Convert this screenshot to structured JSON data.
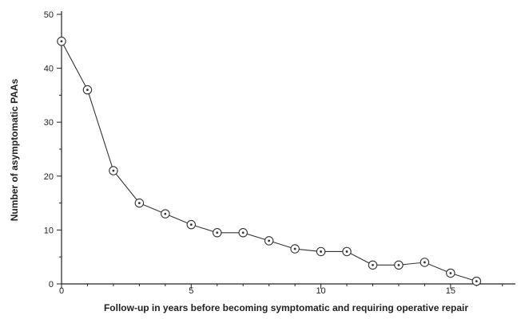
{
  "chart_data": {
    "type": "line",
    "title": "",
    "xlabel": "Follow-up in years before becoming symptomatic and requiring operative repair",
    "ylabel": "Number of asymptomatic PAAs",
    "xlim": [
      0,
      17.5
    ],
    "ylim": [
      0,
      50
    ],
    "x_ticks": [
      0,
      5,
      10,
      15
    ],
    "y_ticks": [
      0,
      10,
      20,
      30,
      40,
      50
    ],
    "x_tick_labels": [
      "0",
      "5",
      "10",
      "15"
    ],
    "y_tick_labels": [
      "0",
      "10",
      "20",
      "30",
      "40",
      "50"
    ],
    "x_minor_step": 1,
    "grid": false,
    "legend": "none",
    "marker": "circled-dot",
    "line_color": "#333333",
    "series": [
      {
        "x": [
          0,
          1,
          2,
          3,
          4,
          5,
          6,
          7,
          8,
          9,
          10,
          11,
          12,
          13,
          14,
          15,
          16
        ],
        "y": [
          45,
          36,
          21,
          15,
          13,
          11,
          9.5,
          9.5,
          8,
          6.5,
          6,
          6,
          3.5,
          3.5,
          4,
          2,
          0.5
        ]
      }
    ]
  }
}
